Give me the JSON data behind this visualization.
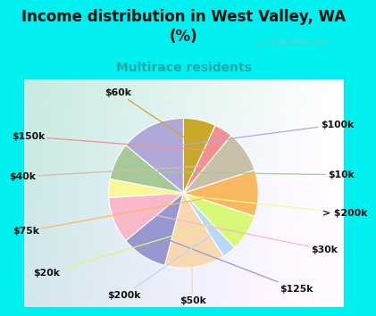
{
  "title": "Income distribution in West Valley, WA\n(%)",
  "subtitle": "Multirace residents",
  "labels": [
    "$100k",
    "$10k",
    "> $200k",
    "$30k",
    "$125k",
    "$50k",
    "$200k",
    "$20k",
    "$75k",
    "$40k",
    "$150k",
    "$60k"
  ],
  "values": [
    14,
    8,
    4,
    10,
    10,
    13,
    3,
    8,
    10,
    9,
    4,
    7
  ],
  "colors": [
    "#b0a8d8",
    "#a8c898",
    "#f8f898",
    "#f8b8c8",
    "#9898d0",
    "#f8d8b0",
    "#b8d8f8",
    "#d8f878",
    "#f8b860",
    "#c8c0a8",
    "#f09090",
    "#c8a828"
  ],
  "bg_color": "#00f0f0",
  "chart_bg_left": "#c8e8d8",
  "chart_bg_right": "#e8f8f8",
  "title_color": "#111111",
  "subtitle_color": "#20a8a8",
  "watermark": "  City-Data.com",
  "watermark_color": "#a0b8b8"
}
